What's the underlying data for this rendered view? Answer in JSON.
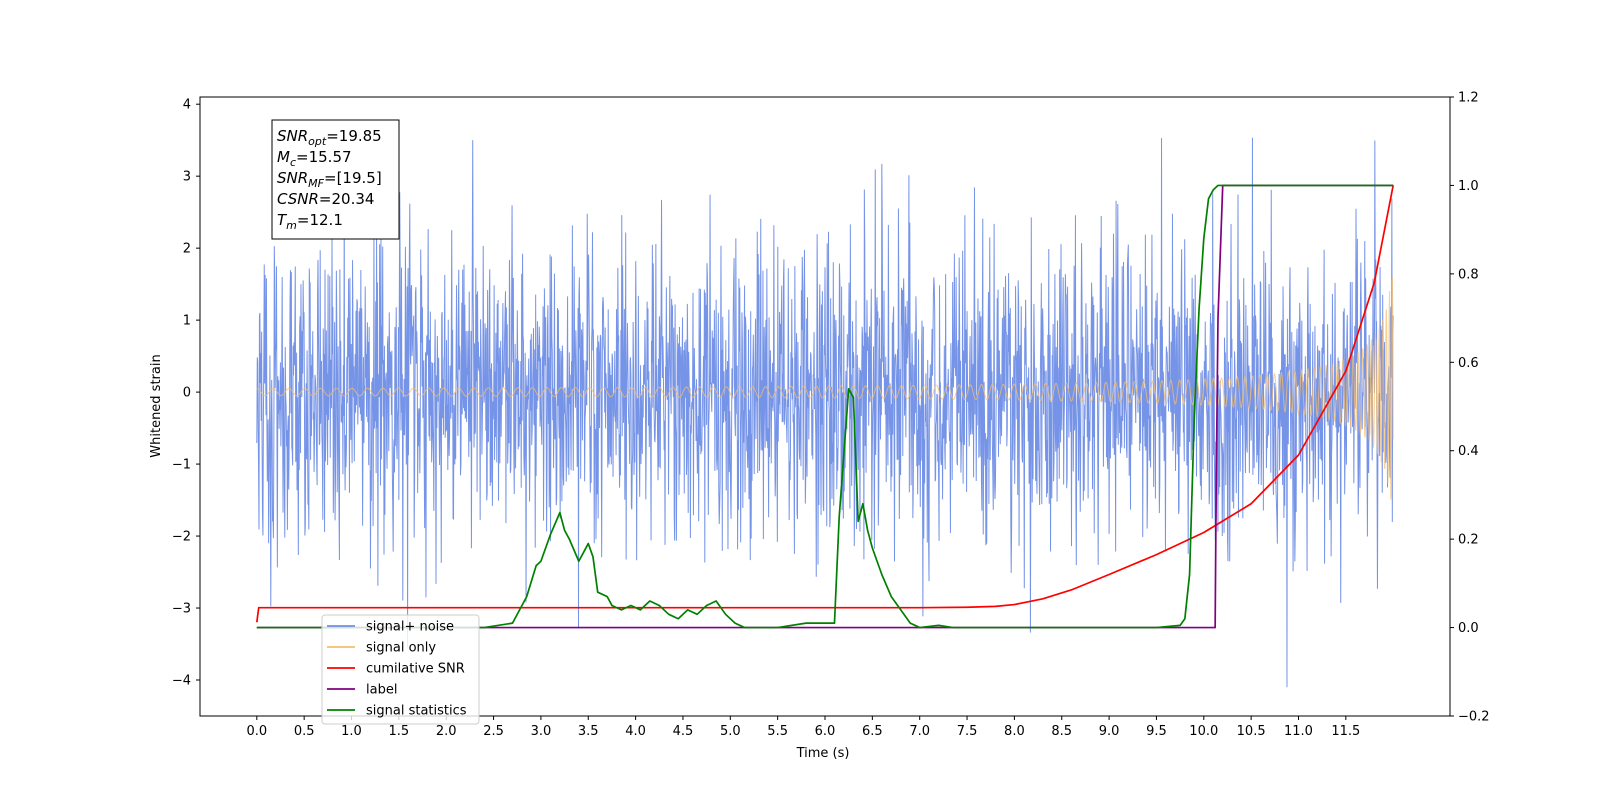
{
  "chart_data": {
    "type": "line",
    "xlabel": "Time (s)",
    "ylabel_left": "Whitened strain",
    "ylabel_right": "",
    "xlim": [
      -0.6,
      12.6
    ],
    "ylim_left": [
      -4.5,
      4.1
    ],
    "ylim_right": [
      -0.2,
      1.2
    ],
    "x_ticks": [
      "0.0",
      "0.5",
      "1.0",
      "1.5",
      "2.0",
      "2.5",
      "3.0",
      "3.5",
      "4.0",
      "4.5",
      "5.0",
      "5.5",
      "6.0",
      "6.5",
      "7.0",
      "7.5",
      "8.0",
      "8.5",
      "9.0",
      "9.5",
      "10.0",
      "10.5",
      "11.0",
      "11.5"
    ],
    "y_ticks_left": [
      "−4",
      "−3",
      "−2",
      "−1",
      "0",
      "1",
      "2",
      "3",
      "4"
    ],
    "y_ticks_right": [
      "−0.2",
      "0.0",
      "0.2",
      "0.4",
      "0.6",
      "0.8",
      "1.0",
      "1.2"
    ],
    "grid": false,
    "legend_position": "lower-left",
    "annotation": {
      "lines": [
        {
          "base": "SNR",
          "sub": "opt",
          "value": "=19.85"
        },
        {
          "base": "M",
          "sub": "c",
          "value": "=15.57"
        },
        {
          "base": "SNR",
          "sub": "MF",
          "value": "=[19.5]"
        },
        {
          "base": "CSNR",
          "sub": "",
          "value": "=20.34"
        },
        {
          "base": "T",
          "sub": "m",
          "value": "=12.1"
        }
      ]
    },
    "series": [
      {
        "name": "signal+ noise",
        "axis": "left",
        "color": "#6f8ee6",
        "kind": "noise",
        "x_range": [
          0.0,
          12.0
        ],
        "sigma": 1.0,
        "range_observed": [
          -4.1,
          3.7
        ]
      },
      {
        "name": "signal only",
        "axis": "left",
        "color": "#f5be6e",
        "kind": "chirp",
        "x_range": [
          0.0,
          12.0
        ],
        "amplitude_at_end": 1.8,
        "merger_time": 12.1
      },
      {
        "name": "cumilative SNR",
        "axis": "right",
        "color": "#ff0000",
        "x": [
          0.0,
          0.02,
          1.0,
          3.0,
          5.0,
          7.0,
          7.5,
          7.8,
          8.0,
          8.3,
          8.6,
          9.0,
          9.5,
          10.0,
          10.5,
          11.0,
          11.5,
          11.8,
          12.0
        ],
        "y": [
          0.012,
          0.045,
          0.045,
          0.045,
          0.045,
          0.045,
          0.046,
          0.048,
          0.052,
          0.065,
          0.085,
          0.12,
          0.165,
          0.215,
          0.28,
          0.39,
          0.58,
          0.78,
          1.0
        ]
      },
      {
        "name": "label",
        "axis": "right",
        "color": "#800080",
        "x": [
          0.0,
          10.12,
          10.13,
          10.15,
          10.2,
          12.0
        ],
        "y": [
          0.0,
          0.0,
          0.3,
          0.7,
          1.0,
          1.0
        ]
      },
      {
        "name": "signal statistics",
        "axis": "right",
        "color": "#008000",
        "x": [
          0.0,
          2.4,
          2.7,
          2.85,
          2.95,
          3.0,
          3.1,
          3.2,
          3.25,
          3.3,
          3.4,
          3.5,
          3.55,
          3.6,
          3.7,
          3.75,
          3.85,
          3.95,
          4.05,
          4.15,
          4.25,
          4.35,
          4.45,
          4.55,
          4.65,
          4.75,
          4.85,
          4.95,
          5.05,
          5.15,
          5.3,
          5.5,
          5.8,
          6.1,
          6.15,
          6.25,
          6.3,
          6.35,
          6.4,
          6.45,
          6.5,
          6.6,
          6.7,
          6.8,
          6.9,
          7.0,
          7.2,
          7.35,
          7.5,
          9.5,
          9.75,
          9.8,
          9.85,
          9.9,
          9.95,
          10.0,
          10.05,
          10.1,
          10.15,
          10.2,
          12.0
        ],
        "y": [
          0.0,
          0.0,
          0.01,
          0.07,
          0.14,
          0.15,
          0.21,
          0.26,
          0.22,
          0.2,
          0.15,
          0.19,
          0.16,
          0.08,
          0.07,
          0.05,
          0.04,
          0.05,
          0.04,
          0.06,
          0.05,
          0.03,
          0.02,
          0.04,
          0.03,
          0.05,
          0.06,
          0.03,
          0.01,
          0.0,
          0.0,
          0.0,
          0.01,
          0.01,
          0.25,
          0.54,
          0.52,
          0.24,
          0.28,
          0.22,
          0.18,
          0.12,
          0.07,
          0.04,
          0.01,
          0.0,
          0.005,
          0.0,
          0.0,
          0.0,
          0.005,
          0.02,
          0.12,
          0.48,
          0.72,
          0.88,
          0.97,
          0.99,
          1.0,
          1.0,
          1.0
        ]
      }
    ]
  }
}
